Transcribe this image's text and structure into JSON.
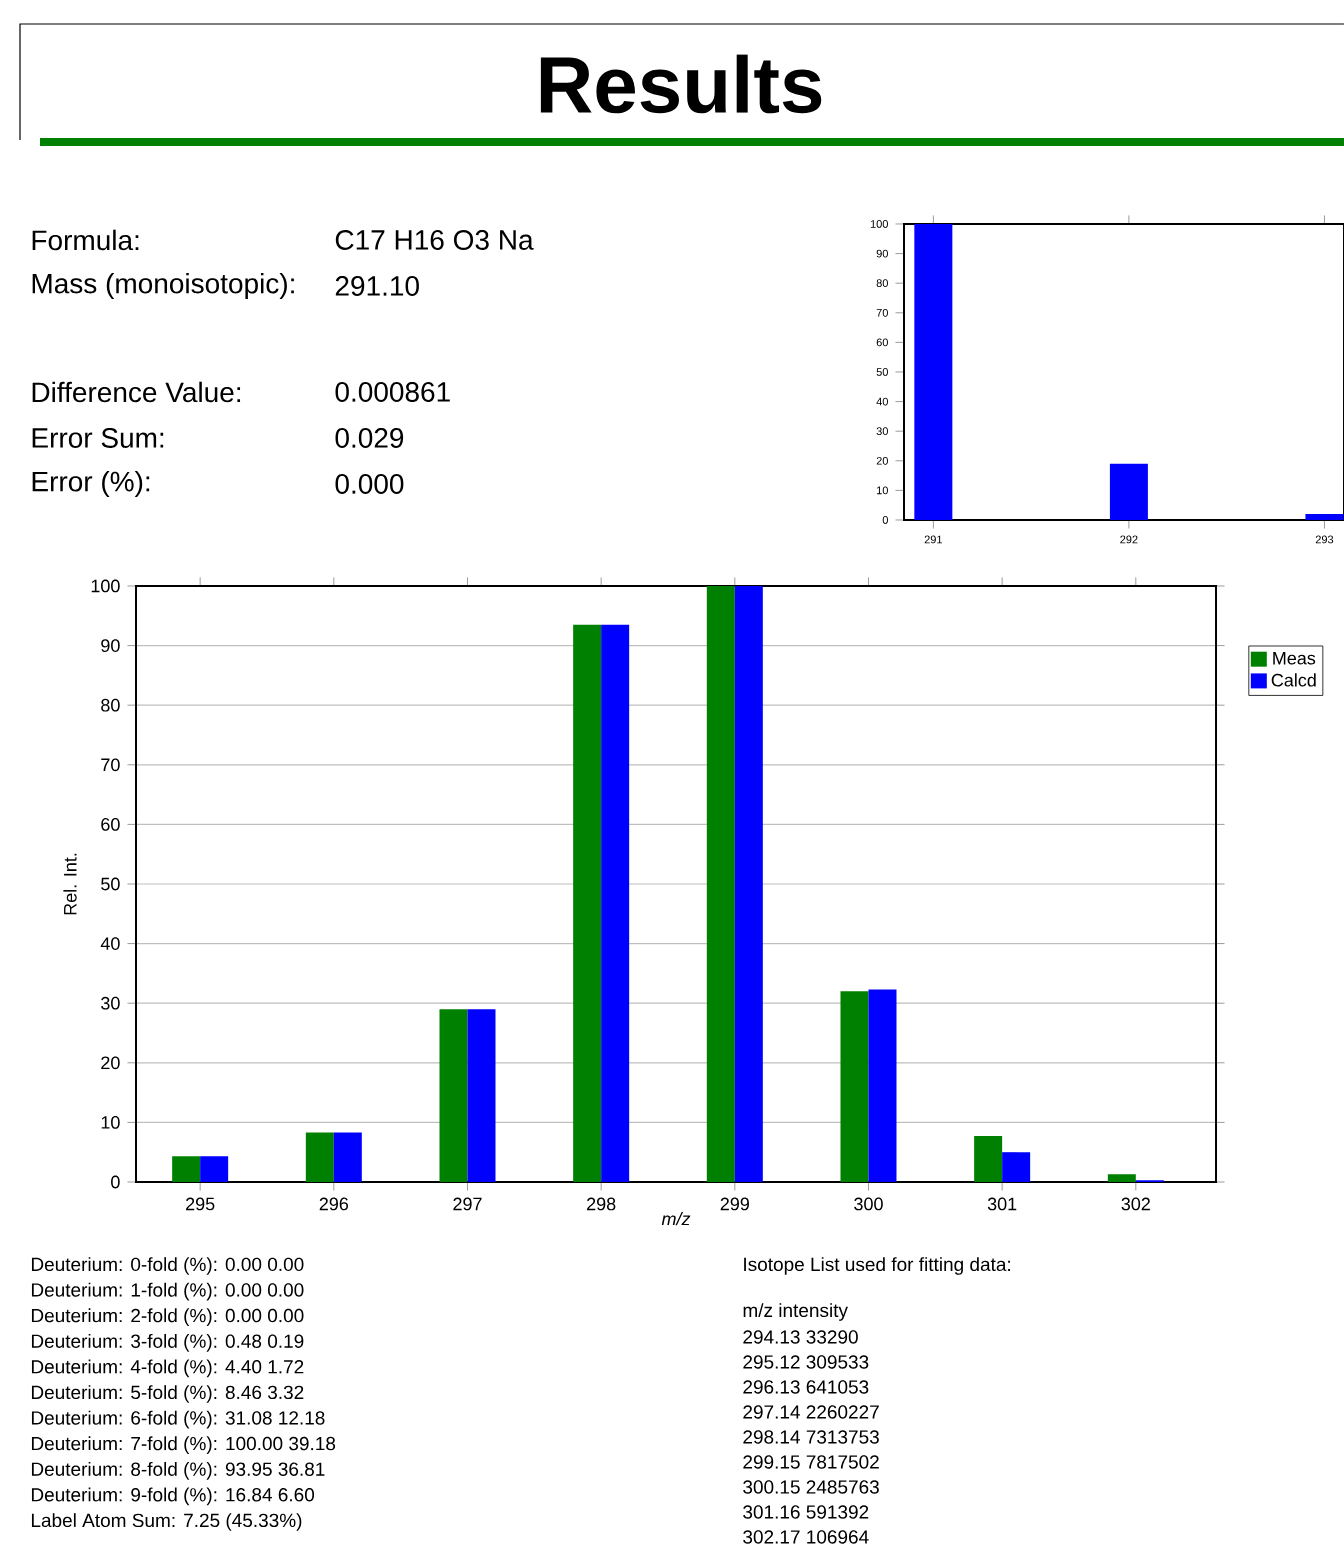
{
  "chart_data": [
    {
      "type": "other",
      "title": "Results",
      "annotations": [
        "Formula:",
        "C17 H16 O3 Na",
        "Mass (monoisotopic):",
        "291.10",
        "Difference Value:",
        "0.000861",
        "Error Sum:",
        "0.029",
        "Error (%):",
        "0.000"
      ]
    },
    {
      "type": "bar",
      "categories": [
        "291",
        "292",
        "293"
      ],
      "series": [
        {
          "color": "#0000ff",
          "values": [
            100,
            19,
            2
          ]
        }
      ],
      "ylim": [
        0,
        100
      ],
      "yticks": [
        0,
        10,
        20,
        30,
        40,
        50,
        60,
        70,
        80,
        90,
        100
      ]
    },
    {
      "type": "bar",
      "xlabel": "m/z",
      "ylabel": "Rel. Int.",
      "categories": [
        "295",
        "296",
        "297",
        "298",
        "299",
        "300",
        "301",
        "302"
      ],
      "series": [
        {
          "name": "Meas",
          "color": "#008000",
          "values": [
            4.3,
            8.3,
            29,
            93.5,
            100,
            32,
            7.7,
            1.3
          ]
        },
        {
          "name": "Calcd",
          "color": "#0000ff",
          "values": [
            4.3,
            8.3,
            29,
            93.5,
            100,
            32.3,
            5,
            0.3
          ]
        }
      ],
      "ylim": [
        0,
        100
      ],
      "yticks": [
        0,
        10,
        20,
        30,
        40,
        50,
        60,
        70,
        80,
        90,
        100
      ],
      "grid": "y",
      "legend": "right"
    },
    {
      "type": "other",
      "annotations": [
        "Deuterium:  0-fold (%): 0.00   0.00",
        "Deuterium:  1-fold (%): 0.00   0.00",
        "Deuterium:  2-fold (%): 0.00   0.00",
        "Deuterium:  3-fold (%): 0.48   0.19",
        "Deuterium:  4-fold (%): 4.40   1.72",
        "Deuterium:  5-fold (%): 8.46   3.32",
        "Deuterium:  6-fold (%): 31.08   12.18",
        "Deuterium:  7-fold (%): 100.00   39.18",
        "Deuterium:  8-fold (%): 93.95   36.81",
        "Deuterium:  9-fold (%): 16.84   6.60",
        "Label Atom Sum: 7.25 (45.33%)"
      ]
    },
    {
      "type": "other",
      "annotations": [
        "Isotope List used for fitting data:",
        "m/z intensity",
        "294.13   33290",
        "295.12   309533",
        "296.13   641053",
        "297.14   2260227",
        "298.14   7313753",
        "299.15   7817502",
        "300.15   2485763",
        "301.16   591392",
        "302.17   106964"
      ]
    }
  ]
}
